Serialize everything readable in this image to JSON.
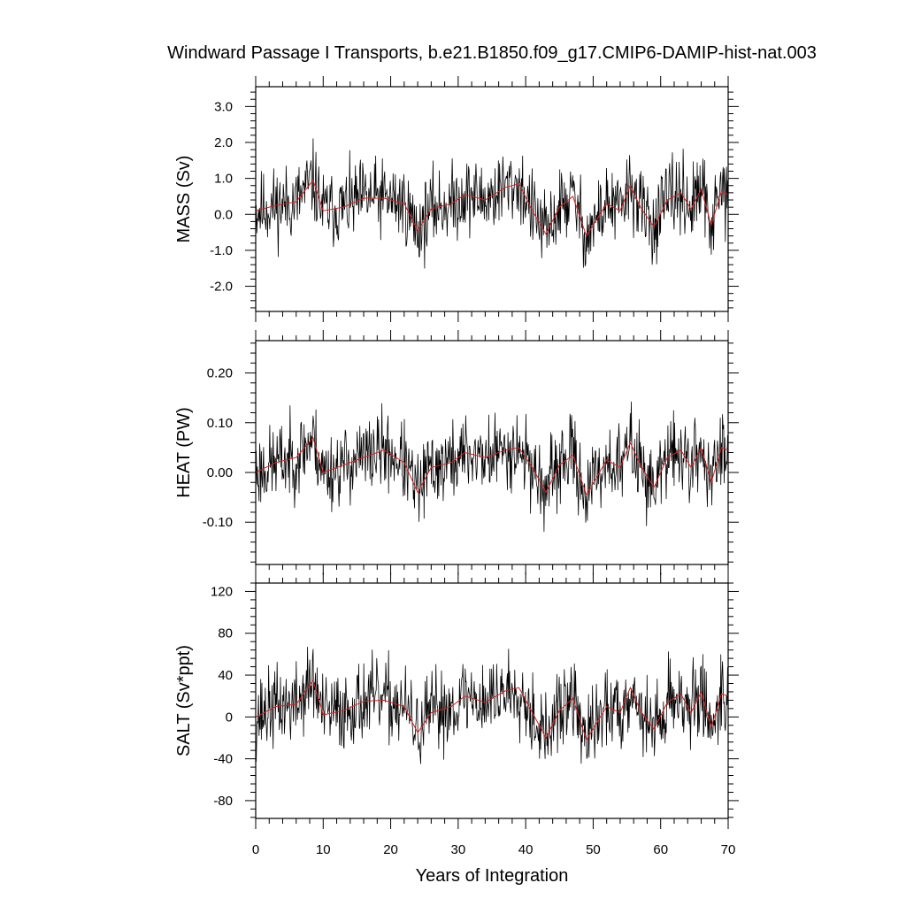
{
  "chart_data": {
    "title": "Windward Passage I Transports, b.e21.B1850.f09_g17.CMIP6-DAMIP-hist-nat.003",
    "xlabel": "Years of Integration",
    "xlim": [
      0,
      70
    ],
    "xticks": [
      0,
      10,
      20,
      30,
      40,
      50,
      60,
      70
    ],
    "x_tick_labels": [
      "0",
      "10",
      "20",
      "30",
      "40",
      "50",
      "60",
      "70"
    ],
    "colors": {
      "raw": "#000000",
      "smoothed": "#d62020"
    },
    "panels": [
      {
        "type": "line",
        "ylabel": "MASS (Sv)",
        "ylim": [
          -2.7,
          3.55
        ],
        "yticks": [
          -2.0,
          -1.0,
          0.0,
          1.0,
          2.0,
          3.0
        ],
        "ytick_labels": [
          "-2.0",
          "-1.0",
          "0.0",
          "1.0",
          "2.0",
          "3.0"
        ],
        "smoothed": [
          [
            0,
            0.1
          ],
          [
            3,
            0.25
          ],
          [
            6,
            0.35
          ],
          [
            8.5,
            0.95
          ],
          [
            10,
            0.1
          ],
          [
            13,
            0.2
          ],
          [
            16,
            0.45
          ],
          [
            19,
            0.45
          ],
          [
            22,
            0.3
          ],
          [
            24,
            -0.45
          ],
          [
            26,
            0.15
          ],
          [
            29,
            0.3
          ],
          [
            31,
            0.55
          ],
          [
            34,
            0.4
          ],
          [
            37,
            0.75
          ],
          [
            39,
            0.85
          ],
          [
            41,
            0.1
          ],
          [
            43,
            -0.55
          ],
          [
            45,
            0.2
          ],
          [
            47,
            0.5
          ],
          [
            49,
            -0.6
          ],
          [
            52,
            0.3
          ],
          [
            54,
            0.1
          ],
          [
            55.5,
            0.8
          ],
          [
            57,
            0.2
          ],
          [
            59,
            -0.35
          ],
          [
            61,
            0.4
          ],
          [
            63,
            0.6
          ],
          [
            64.5,
            0.15
          ],
          [
            66,
            0.7
          ],
          [
            67.5,
            -0.3
          ],
          [
            69,
            0.65
          ],
          [
            70,
            0.55
          ]
        ],
        "raw": {
          "points": 840,
          "mean": 0.2,
          "std": 0.75,
          "seed": 11
        }
      },
      {
        "type": "line",
        "ylabel": "HEAT (PW)",
        "ylim": [
          -0.185,
          0.265
        ],
        "yticks": [
          -0.1,
          0.0,
          0.1,
          0.2
        ],
        "ytick_labels": [
          "-0.10",
          "0.00",
          "0.10",
          "0.20"
        ],
        "smoothed": [
          [
            0,
            0.0
          ],
          [
            3,
            0.02
          ],
          [
            6,
            0.03
          ],
          [
            8.5,
            0.07
          ],
          [
            10,
            0.0
          ],
          [
            13,
            0.015
          ],
          [
            16,
            0.03
          ],
          [
            19,
            0.045
          ],
          [
            22,
            0.02
          ],
          [
            24,
            -0.04
          ],
          [
            26,
            0.01
          ],
          [
            29,
            0.02
          ],
          [
            31,
            0.04
          ],
          [
            34,
            0.03
          ],
          [
            37,
            0.045
          ],
          [
            39,
            0.05
          ],
          [
            41,
            0.01
          ],
          [
            43,
            -0.04
          ],
          [
            45,
            0.015
          ],
          [
            47,
            0.035
          ],
          [
            49,
            -0.045
          ],
          [
            52,
            0.025
          ],
          [
            54,
            0.01
          ],
          [
            55.5,
            0.06
          ],
          [
            57,
            0.015
          ],
          [
            59,
            -0.03
          ],
          [
            61,
            0.03
          ],
          [
            63,
            0.045
          ],
          [
            64.5,
            0.01
          ],
          [
            66,
            0.05
          ],
          [
            67.5,
            -0.02
          ],
          [
            69,
            0.05
          ],
          [
            70,
            0.045
          ]
        ],
        "raw": {
          "points": 840,
          "mean": 0.015,
          "std": 0.055,
          "seed": 23
        }
      },
      {
        "type": "line",
        "ylabel": "SALT (Sv*ppt)",
        "ylim": [
          -97,
          128
        ],
        "yticks": [
          -80,
          -40,
          0,
          40,
          80,
          120
        ],
        "ytick_labels": [
          "-80",
          "-40",
          "0",
          "40",
          "80",
          "120"
        ],
        "smoothed": [
          [
            0,
            0
          ],
          [
            3,
            10
          ],
          [
            6,
            12
          ],
          [
            8.5,
            35
          ],
          [
            10,
            2
          ],
          [
            13,
            6
          ],
          [
            16,
            15
          ],
          [
            19,
            16
          ],
          [
            22,
            10
          ],
          [
            24,
            -15
          ],
          [
            26,
            4
          ],
          [
            29,
            10
          ],
          [
            31,
            20
          ],
          [
            34,
            14
          ],
          [
            37,
            25
          ],
          [
            39,
            28
          ],
          [
            41,
            4
          ],
          [
            43,
            -20
          ],
          [
            45,
            6
          ],
          [
            47,
            18
          ],
          [
            49,
            -22
          ],
          [
            52,
            10
          ],
          [
            54,
            4
          ],
          [
            55.5,
            28
          ],
          [
            57,
            6
          ],
          [
            59,
            -12
          ],
          [
            61,
            14
          ],
          [
            63,
            22
          ],
          [
            64.5,
            4
          ],
          [
            66,
            24
          ],
          [
            67.5,
            -10
          ],
          [
            69,
            22
          ],
          [
            70,
            20
          ]
        ],
        "raw": {
          "points": 840,
          "mean": 7,
          "std": 27,
          "seed": 37
        }
      }
    ]
  }
}
